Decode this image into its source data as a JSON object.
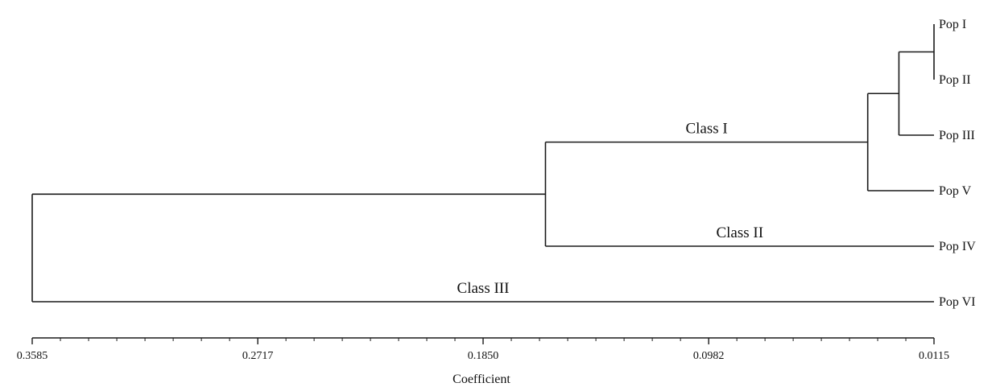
{
  "chart_data": {
    "type": "dendrogram",
    "xlabel": "Coefficient",
    "x_range": [
      0.3585,
      0.0115
    ],
    "ticks": [
      {
        "value": 0.3585,
        "label": "0.3585"
      },
      {
        "value": 0.2717,
        "label": "0.2717"
      },
      {
        "value": 0.185,
        "label": "0.1850"
      },
      {
        "value": 0.0982,
        "label": "0.0982"
      },
      {
        "value": 0.0115,
        "label": "0.0115"
      }
    ],
    "leaves": [
      "Pop I",
      "Pop II",
      "Pop III",
      "Pop V",
      "Pop IV",
      "Pop VI"
    ],
    "merges": [
      {
        "id": "n1",
        "children": [
          "Pop I",
          "Pop II"
        ],
        "height": 0.0115
      },
      {
        "id": "n2",
        "children": [
          "n1",
          "Pop III"
        ],
        "height": 0.025
      },
      {
        "id": "n3",
        "children": [
          "n2",
          "Pop V"
        ],
        "height": 0.037
      },
      {
        "id": "n4",
        "children": [
          "n3",
          "Pop IV"
        ],
        "height": 0.161
      },
      {
        "id": "n5",
        "children": [
          "n4",
          "Pop VI"
        ],
        "height": 0.3585
      }
    ],
    "class_labels": [
      {
        "text": "Class I",
        "branch": "n3"
      },
      {
        "text": "Class II",
        "branch": "Pop IV"
      },
      {
        "text": "Class III",
        "branch": "Pop VI"
      }
    ]
  }
}
